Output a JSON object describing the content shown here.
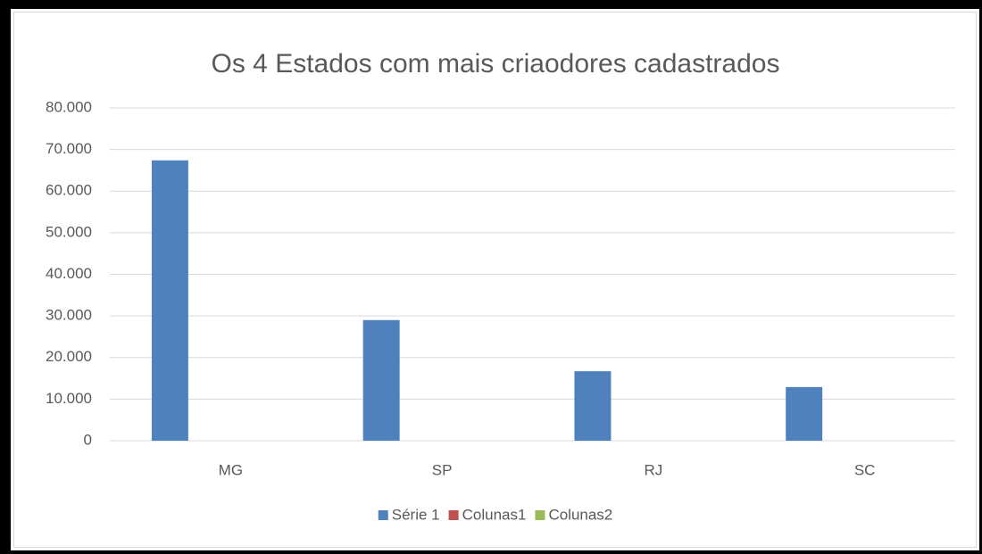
{
  "chart_data": {
    "type": "bar",
    "title": "Os 4 Estados com mais criaodores cadastrados",
    "categories": [
      "MG",
      "SP",
      "RJ",
      "SC"
    ],
    "series": [
      {
        "name": "Série 1",
        "color": "#4f81bd",
        "values": [
          67400,
          29000,
          16700,
          12900
        ]
      },
      {
        "name": "Colunas1",
        "color": "#c0504d",
        "values": [
          null,
          null,
          null,
          null
        ]
      },
      {
        "name": "Colunas2",
        "color": "#9bbb59",
        "values": [
          null,
          null,
          null,
          null
        ]
      }
    ],
    "ylim": [
      0,
      80000
    ],
    "yticks": [
      0,
      {
        "value": 10000,
        "label": "10.000"
      },
      {
        "value": 20000,
        "label": "20.000"
      },
      {
        "value": 30000,
        "label": "30.000"
      },
      {
        "value": 40000,
        "label": "40.000"
      },
      {
        "value": 50000,
        "label": "50.000"
      },
      {
        "value": 60000,
        "label": "60.000"
      },
      {
        "value": 70000,
        "label": "70.000"
      },
      {
        "value": 80000,
        "label": "80.000"
      }
    ],
    "grid": true,
    "legend": "bottom"
  }
}
